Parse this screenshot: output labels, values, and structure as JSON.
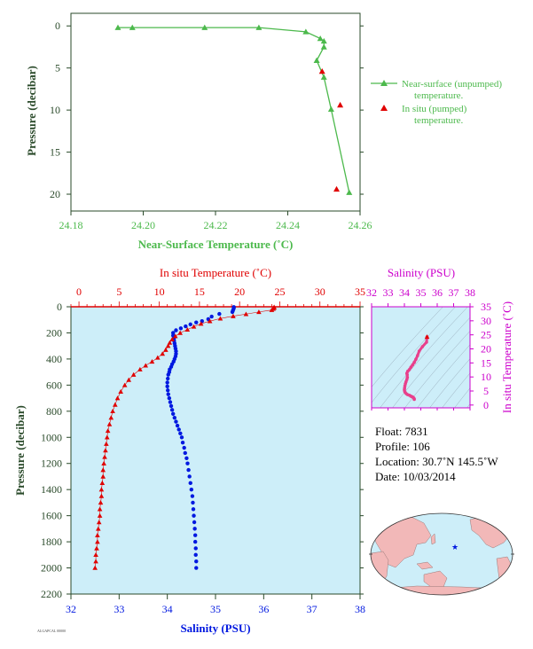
{
  "colors": {
    "green": "#4CB94C",
    "red": "#E00000",
    "blue": "#0018E0",
    "magenta": "#CC00CC",
    "pink": "#E8408C",
    "panel_bg": "#CDEEF9",
    "axis_dark": "#2A4A2A"
  },
  "chart_data": [
    {
      "id": "near_surface",
      "type": "scatter",
      "xlabel": "Near-Surface Temperature (˚C)",
      "ylabel": "Pressure (decibar)",
      "xlim": [
        24.18,
        24.26
      ],
      "ylim": [
        22,
        -1.5
      ],
      "x_ticks": [
        "24.18",
        "24.20",
        "24.22",
        "24.24",
        "24.26"
      ],
      "y_ticks": [
        "0",
        "5",
        "10",
        "15",
        "20"
      ],
      "series": [
        {
          "name": "Near-surface (unpumped) temperature.",
          "marker": "triangle-line",
          "points": [
            [
              24.193,
              0.2
            ],
            [
              24.197,
              0.2
            ],
            [
              24.217,
              0.2
            ],
            [
              24.232,
              0.2
            ],
            [
              24.245,
              0.7
            ],
            [
              24.249,
              1.5
            ],
            [
              24.25,
              1.8
            ],
            [
              24.25,
              2.5
            ],
            [
              24.248,
              4.1
            ],
            [
              24.25,
              6.1
            ],
            [
              24.252,
              9.9
            ],
            [
              24.257,
              19.8
            ]
          ]
        },
        {
          "name": "In situ (pumped) temperature.",
          "marker": "triangle",
          "points": [
            [
              24.2495,
              5.4
            ],
            [
              24.2545,
              9.4
            ],
            [
              24.2535,
              19.4
            ]
          ]
        }
      ]
    },
    {
      "id": "profile",
      "type": "scatter",
      "title": "In situ Temperature (˚C)",
      "xlabel": "Salinity (PSU)",
      "ylabel": "Pressure (decibar)",
      "temp_lim": [
        -1,
        35
      ],
      "sal_lim": [
        32,
        38
      ],
      "ylim": [
        0,
        2200
      ],
      "temp_ticks": [
        "0",
        "5",
        "10",
        "15",
        "20",
        "25",
        "30",
        "35"
      ],
      "sal_ticks": [
        "32",
        "33",
        "34",
        "35",
        "36",
        "37",
        "38"
      ],
      "y_ticks": [
        "0",
        "200",
        "400",
        "600",
        "800",
        "1000",
        "1200",
        "1400",
        "1600",
        "1800",
        "2000",
        "2200"
      ],
      "series": [
        {
          "name": "Temperature",
          "points": [
            [
              24.3,
              2
            ],
            [
              24.3,
              8
            ],
            [
              24.2,
              15
            ],
            [
              24.0,
              25
            ],
            [
              22.4,
              40
            ],
            [
              20.8,
              56
            ],
            [
              19.2,
              72
            ],
            [
              17.6,
              90
            ],
            [
              16.3,
              110
            ],
            [
              15.2,
              130
            ],
            [
              14.3,
              152
            ],
            [
              13.5,
              175
            ],
            [
              12.6,
              200
            ],
            [
              12.0,
              225
            ],
            [
              11.6,
              250
            ],
            [
              11.3,
              275
            ],
            [
              11.1,
              300
            ],
            [
              10.8,
              330
            ],
            [
              10.4,
              360
            ],
            [
              9.8,
              390
            ],
            [
              9.1,
              420
            ],
            [
              8.3,
              450
            ],
            [
              7.6,
              480
            ],
            [
              6.8,
              520
            ],
            [
              6.2,
              560
            ],
            [
              5.7,
              600
            ],
            [
              5.2,
              650
            ],
            [
              4.8,
              700
            ],
            [
              4.5,
              750
            ],
            [
              4.2,
              800
            ],
            [
              4.0,
              850
            ],
            [
              3.8,
              900
            ],
            [
              3.6,
              950
            ],
            [
              3.5,
              1000
            ],
            [
              3.4,
              1050
            ],
            [
              3.3,
              1100
            ],
            [
              3.2,
              1150
            ],
            [
              3.1,
              1200
            ],
            [
              3.0,
              1250
            ],
            [
              3.0,
              1300
            ],
            [
              2.9,
              1350
            ],
            [
              2.8,
              1400
            ],
            [
              2.8,
              1450
            ],
            [
              2.7,
              1500
            ],
            [
              2.6,
              1550
            ],
            [
              2.6,
              1600
            ],
            [
              2.5,
              1650
            ],
            [
              2.4,
              1700
            ],
            [
              2.3,
              1750
            ],
            [
              2.3,
              1800
            ],
            [
              2.2,
              1850
            ],
            [
              2.1,
              1900
            ],
            [
              2.1,
              1950
            ],
            [
              2.0,
              2000
            ]
          ]
        },
        {
          "name": "Salinity",
          "points": [
            [
              35.38,
              2
            ],
            [
              35.38,
              10
            ],
            [
              35.37,
              20
            ],
            [
              35.36,
              30
            ],
            [
              35.35,
              40
            ],
            [
              35.08,
              55
            ],
            [
              34.92,
              75
            ],
            [
              34.85,
              95
            ],
            [
              34.72,
              110
            ],
            [
              34.6,
              120
            ],
            [
              34.48,
              135
            ],
            [
              34.38,
              150
            ],
            [
              34.28,
              165
            ],
            [
              34.18,
              180
            ],
            [
              34.12,
              200
            ],
            [
              34.12,
              220
            ],
            [
              34.14,
              240
            ],
            [
              34.14,
              260
            ],
            [
              34.15,
              280
            ],
            [
              34.16,
              300
            ],
            [
              34.17,
              320
            ],
            [
              34.18,
              340
            ],
            [
              34.18,
              360
            ],
            [
              34.17,
              380
            ],
            [
              34.15,
              400
            ],
            [
              34.13,
              420
            ],
            [
              34.1,
              440
            ],
            [
              34.08,
              460
            ],
            [
              34.05,
              480
            ],
            [
              34.04,
              500
            ],
            [
              34.02,
              520
            ],
            [
              34.01,
              550
            ],
            [
              34.0,
              580
            ],
            [
              34.0,
              610
            ],
            [
              34.01,
              640
            ],
            [
              34.02,
              670
            ],
            [
              34.04,
              700
            ],
            [
              34.06,
              730
            ],
            [
              34.08,
              760
            ],
            [
              34.1,
              790
            ],
            [
              34.12,
              820
            ],
            [
              34.15,
              850
            ],
            [
              34.18,
              880
            ],
            [
              34.21,
              910
            ],
            [
              34.24,
              940
            ],
            [
              34.27,
              970
            ],
            [
              34.3,
              1000
            ],
            [
              34.32,
              1040
            ],
            [
              34.35,
              1080
            ],
            [
              34.37,
              1120
            ],
            [
              34.4,
              1160
            ],
            [
              34.42,
              1200
            ],
            [
              34.44,
              1250
            ],
            [
              34.46,
              1300
            ],
            [
              34.48,
              1350
            ],
            [
              34.5,
              1400
            ],
            [
              34.52,
              1450
            ],
            [
              34.53,
              1500
            ],
            [
              34.54,
              1550
            ],
            [
              34.55,
              1600
            ],
            [
              34.56,
              1650
            ],
            [
              34.57,
              1700
            ],
            [
              34.58,
              1750
            ],
            [
              34.58,
              1800
            ],
            [
              34.59,
              1850
            ],
            [
              34.59,
              1900
            ],
            [
              34.6,
              1950
            ],
            [
              34.6,
              2000
            ]
          ]
        }
      ]
    },
    {
      "id": "ts_diagram",
      "type": "scatter",
      "xlabel": "Salinity (PSU)",
      "ylabel": "In situ Temperature (˚C)",
      "xlim": [
        32,
        38
      ],
      "ylim": [
        -1,
        35
      ],
      "x_ticks": [
        "32",
        "33",
        "34",
        "35",
        "36",
        "37",
        "38"
      ],
      "y_ticks": [
        "0",
        "5",
        "10",
        "15",
        "20",
        "25",
        "30",
        "35"
      ],
      "points": [
        [
          35.38,
          24.3
        ],
        [
          35.35,
          22.4
        ],
        [
          35.1,
          20.8
        ],
        [
          34.9,
          19.2
        ],
        [
          34.8,
          17.6
        ],
        [
          34.7,
          16.3
        ],
        [
          34.6,
          15.2
        ],
        [
          34.5,
          14.3
        ],
        [
          34.4,
          13.5
        ],
        [
          34.3,
          12.6
        ],
        [
          34.2,
          12.0
        ],
        [
          34.15,
          11.3
        ],
        [
          34.17,
          10.8
        ],
        [
          34.18,
          9.8
        ],
        [
          34.15,
          9.1
        ],
        [
          34.1,
          8.3
        ],
        [
          34.06,
          7.6
        ],
        [
          34.03,
          6.8
        ],
        [
          34.01,
          6.0
        ],
        [
          34.0,
          5.4
        ],
        [
          34.02,
          4.8
        ],
        [
          34.06,
          4.4
        ],
        [
          34.12,
          4.0
        ],
        [
          34.2,
          3.7
        ],
        [
          34.3,
          3.5
        ],
        [
          34.38,
          3.2
        ],
        [
          34.45,
          3.0
        ],
        [
          34.52,
          2.8
        ],
        [
          34.57,
          2.5
        ],
        [
          34.6,
          2.2
        ],
        [
          34.6,
          2.0
        ]
      ]
    }
  ],
  "info": {
    "float": "Float:  7831",
    "profile": "Profile:  106",
    "location": "Location:  30.7˚N  145.5˚W",
    "date": "Date:  10/03/2014"
  },
  "map": {
    "marker": "float-location",
    "lat": 30.7,
    "lon": -145.5
  },
  "stamp": "ALGAPCAL 00000"
}
